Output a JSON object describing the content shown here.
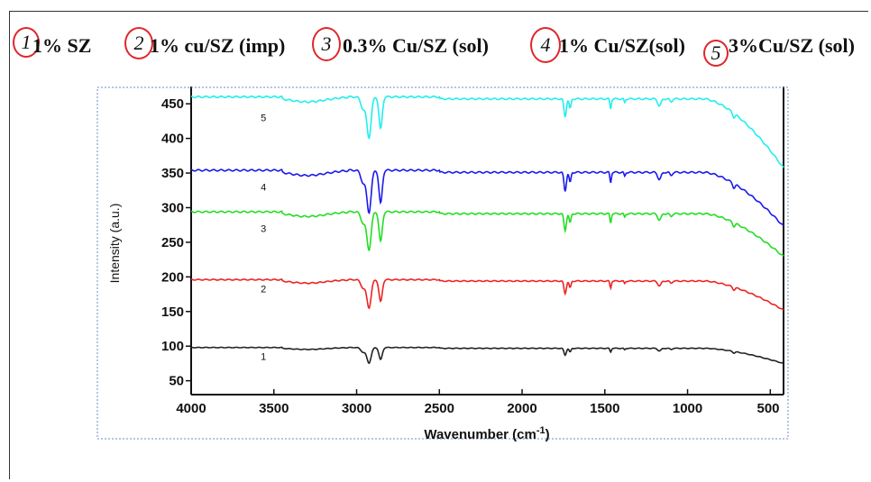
{
  "legend": [
    {
      "num": "1",
      "text": "1% SZ"
    },
    {
      "num": "2",
      "text": "1% cu/SZ (imp)"
    },
    {
      "num": "3",
      "text": "0.3% Cu/SZ (sol)"
    },
    {
      "num": "4",
      "text": "1% Cu/SZ(sol)"
    },
    {
      "num": "5",
      "text": "3%Cu/SZ (sol)"
    }
  ],
  "colors": {
    "s1": "#222222",
    "s2": "#ee2222",
    "s3": "#22dd22",
    "s4": "#1a1aee",
    "s5": "#22eeee",
    "badge": "#e0262b"
  },
  "chart_data": {
    "type": "line",
    "xlabel": "Wavenumber (cm",
    "xlabel_sup": "-1",
    "xlabel_end": ")",
    "ylabel": "Intensity (a.u.)",
    "xlim": [
      4000,
      420
    ],
    "ylim": [
      30,
      475
    ],
    "x_ticks": [
      4000,
      3500,
      3000,
      2500,
      2000,
      1500,
      1000,
      500
    ],
    "x_tick_labels": [
      "4000",
      "3500",
      "3000",
      "2500",
      "2000",
      "1500",
      "1000",
      "500"
    ],
    "y_ticks": [
      50,
      100,
      150,
      200,
      250,
      300,
      350,
      400,
      450
    ],
    "y_tick_labels": [
      "50",
      "100",
      "150",
      "200",
      "250",
      "300",
      "350",
      "400",
      "450"
    ],
    "series": [
      {
        "label": "1",
        "base": 98,
        "scale": 0.55,
        "end_drop": 22
      },
      {
        "label": "2",
        "base": 196,
        "scale": 1.0,
        "end_drop": 42
      },
      {
        "label": "3",
        "base": 294,
        "scale": 1.35,
        "end_drop": 62
      },
      {
        "label": "4",
        "base": 354,
        "scale": 1.5,
        "end_drop": 78
      },
      {
        "label": "5",
        "base": 460,
        "scale": 1.45,
        "end_drop": 100
      }
    ],
    "series_label_positions": [
      {
        "label": "1",
        "x": 3580,
        "y": 80
      },
      {
        "label": "2",
        "x": 3580,
        "y": 178
      },
      {
        "label": "3",
        "x": 3580,
        "y": 265
      },
      {
        "label": "4",
        "x": 3580,
        "y": 325
      },
      {
        "label": "5",
        "x": 3580,
        "y": 425
      }
    ]
  }
}
